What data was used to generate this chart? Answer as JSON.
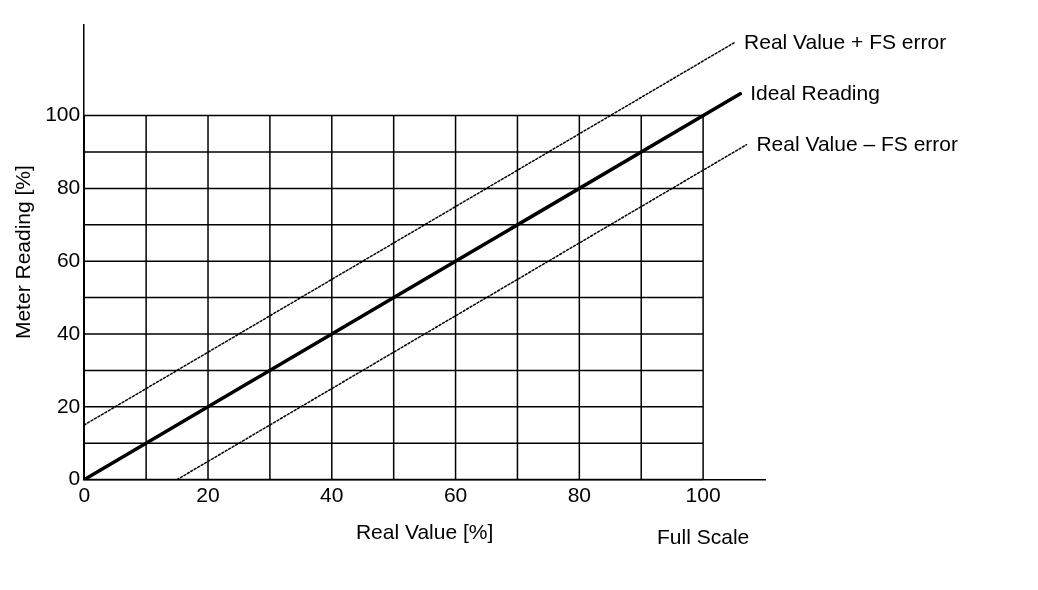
{
  "chart_data": {
    "type": "line",
    "xlabel": "Real Value [%]",
    "ylabel": "Meter Reading [%]",
    "xlim": [
      0,
      110
    ],
    "ylim": [
      0,
      125
    ],
    "xticks": [
      0,
      {
        "value": 10,
        "label": null
      },
      20,
      {
        "value": 30,
        "label": null
      },
      40,
      {
        "value": 50,
        "label": null
      },
      60,
      {
        "value": 70,
        "label": null
      },
      80,
      {
        "value": 90,
        "label": null
      },
      100
    ],
    "yticks": [
      0,
      {
        "value": 10,
        "label": null
      },
      20,
      {
        "value": 30,
        "label": null
      },
      40,
      {
        "value": 50,
        "label": null
      },
      60,
      {
        "value": 70,
        "label": null
      },
      80,
      {
        "value": 90,
        "label": null
      },
      100
    ],
    "grid": true,
    "legend": false,
    "marker": "none",
    "annotations": [
      "Full Scale"
    ],
    "series": [
      {
        "name": "Real Value + FS error",
        "color": "#000000",
        "line_style": "dotted",
        "x": [
          0,
          105
        ],
        "values": [
          15,
          120
        ]
      },
      {
        "name": "Ideal Reading",
        "color": "#000000",
        "line_style": "solid",
        "x": [
          0,
          106
        ],
        "values": [
          0,
          106
        ]
      },
      {
        "name": "Real Value – FS error",
        "color": "#000000",
        "line_style": "dotted",
        "x": [
          15,
          107
        ],
        "values": [
          0,
          92
        ]
      }
    ]
  }
}
